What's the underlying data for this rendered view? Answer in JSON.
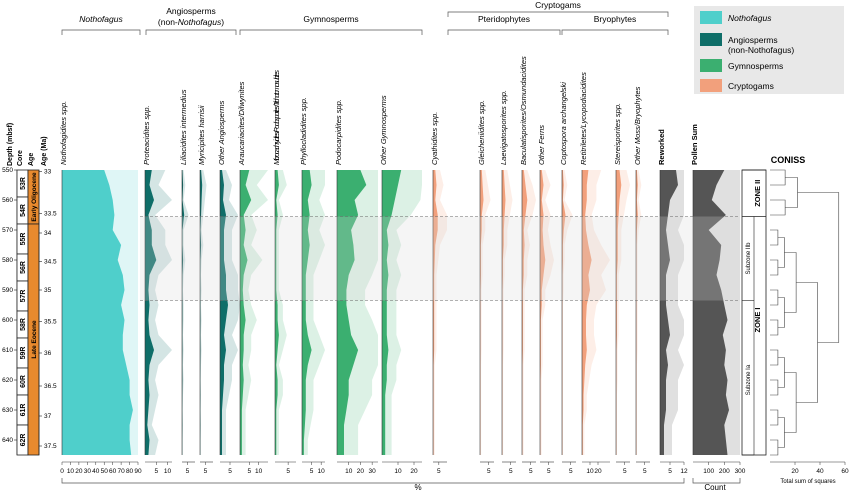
{
  "chart_data": {
    "type": "area",
    "xlabel": "%",
    "count_label": "Count",
    "depth_axis": {
      "label": "Depth (mbsf)",
      "range": [
        550,
        645
      ],
      "ticks": [
        550,
        560,
        570,
        580,
        590,
        600,
        610,
        620,
        630,
        640
      ]
    },
    "core_column": {
      "label": "Core",
      "cores": [
        {
          "name": "53R",
          "top": 550,
          "bottom": 559
        },
        {
          "name": "54R",
          "top": 559,
          "bottom": 568
        },
        {
          "name": "55R",
          "top": 568,
          "bottom": 578
        },
        {
          "name": "56R",
          "top": 578,
          "bottom": 587
        },
        {
          "name": "57R",
          "top": 587,
          "bottom": 597
        },
        {
          "name": "58R",
          "top": 597,
          "bottom": 606
        },
        {
          "name": "59R",
          "top": 606,
          "bottom": 616
        },
        {
          "name": "60R",
          "top": 616,
          "bottom": 625
        },
        {
          "name": "61R",
          "top": 625,
          "bottom": 635
        },
        {
          "name": "62R",
          "top": 635,
          "bottom": 645
        }
      ]
    },
    "age_column": {
      "label": "Age",
      "units": [
        {
          "name": "Early Oligocene",
          "top": 550,
          "bottom": 568
        },
        {
          "name": "Late Eocene",
          "top": 568,
          "bottom": 645
        }
      ]
    },
    "age_ma_axis": {
      "label": "Age (Ma)",
      "ticks": [
        {
          "label": "33",
          "depth": 550.5
        },
        {
          "label": "33.5",
          "depth": 564.5
        },
        {
          "label": "34",
          "depth": 571
        },
        {
          "label": "34.5",
          "depth": 580.5
        },
        {
          "label": "35",
          "depth": 590
        },
        {
          "label": "35.5",
          "depth": 600.5
        },
        {
          "label": "36",
          "depth": 611
        },
        {
          "label": "36.5",
          "depth": 622
        },
        {
          "label": "37",
          "depth": 632
        },
        {
          "label": "37.5",
          "depth": 642
        }
      ]
    },
    "zone_boundaries_depth": [
      565.5,
      593.5
    ],
    "groups": [
      {
        "name": "Nothofagus",
        "italic": true
      },
      {
        "name": "Angiosperms",
        "sub": "(non-",
        "sub_italic": "Nothofagus",
        "sub_end": ")"
      },
      {
        "name": "Gymnosperms"
      },
      {
        "name": "Cryptogams"
      },
      {
        "name": "Pteridophytes"
      },
      {
        "name": "Bryophytes"
      }
    ],
    "depths": [
      550,
      555,
      560,
      565,
      570,
      575,
      580,
      585,
      590,
      595,
      600,
      605,
      610,
      615,
      620,
      625,
      630,
      635,
      640,
      645
    ],
    "taxa": [
      {
        "name": "Nothofagidites spp.",
        "group": "nothofagus",
        "color": "#4FCFCB",
        "scale_max": 90,
        "ticks": [
          "0",
          "10",
          "20",
          "30",
          "40",
          "50",
          "60",
          "70",
          "80",
          "90"
        ],
        "values": [
          50,
          56,
          60,
          62,
          60,
          70,
          66,
          72,
          74,
          70,
          74,
          72,
          72,
          76,
          80,
          80,
          84,
          80,
          80,
          82
        ]
      },
      {
        "name": "Proteacidites spp.",
        "group": "angiosperms",
        "color": "#0F6E69",
        "scale_max": 12,
        "ticks": [
          "5",
          "10"
        ],
        "values": [
          3,
          2,
          4,
          1.5,
          3,
          3,
          5,
          2,
          1.5,
          2,
          1.5,
          2,
          4,
          2,
          1.5,
          2,
          1.5,
          1,
          2,
          1.5
        ]
      },
      {
        "name": "Liliacidites intermedius",
        "group": "angiosperms",
        "color": "#0F6E69",
        "scale_max": 12,
        "ticks": [
          "5"
        ],
        "values": [
          0.5,
          1,
          0.5,
          2,
          0.5,
          0.5,
          1,
          0.5,
          0.3,
          0.5,
          0.5,
          0.3,
          0.5,
          0.3,
          0.5,
          0.3,
          0.2,
          0.3,
          0.2,
          0.2
        ]
      },
      {
        "name": "Myricipites harrisii",
        "group": "angiosperms",
        "color": "#0F6E69",
        "scale_max": 12,
        "ticks": [
          "5"
        ],
        "values": [
          1,
          2,
          1.5,
          1,
          0.5,
          1,
          0.5,
          0.3,
          0.5,
          0.3,
          0.5,
          0.3,
          0.5,
          0.3,
          0.2,
          0.3,
          0.2,
          0.3,
          0.2,
          0.2
        ]
      },
      {
        "name": "Other Angiosperms",
        "group": "angiosperms",
        "color": "#0F6E69",
        "scale_max": 10,
        "ticks": [
          "5"
        ],
        "values": [
          1,
          2,
          1.5,
          3,
          2,
          2,
          2,
          3,
          3,
          4,
          3,
          2,
          3,
          2,
          2,
          1.5,
          1,
          1,
          1,
          1
        ]
      },
      {
        "name": "Araucariacites/Dilwynites",
        "group": "gymnosperms",
        "color": "#3BAF70",
        "scale_max": 15,
        "ticks": [
          "5",
          "10"
        ],
        "values": [
          5,
          3,
          6,
          2,
          3,
          2,
          4,
          2,
          1.5,
          2,
          3,
          2,
          2,
          1.5,
          2,
          1.5,
          1,
          1,
          1,
          1
        ]
      },
      {
        "name": "Microcachryidites/Podosporites/Trichotomosulcites",
        "group": "gymnosperms",
        "color": "#3BAF70",
        "scale_max": 8,
        "ticks": [
          "5"
        ],
        "values": [
          1,
          1.5,
          0.5,
          1,
          0.5,
          0.5,
          0.5,
          0.5,
          0.5,
          1,
          1,
          1.5,
          1,
          0.5,
          1,
          1,
          0.5,
          0.5,
          0.5,
          0.5
        ]
      },
      {
        "name": "Phyllocladidites spp.",
        "group": "gymnosperms",
        "color": "#3BAF70",
        "scale_max": 12,
        "ticks": [
          "5",
          "10"
        ],
        "values": [
          4,
          5,
          3,
          4,
          3,
          4,
          3,
          2,
          2,
          2,
          2,
          3,
          5,
          3,
          2,
          2,
          2,
          1.5,
          1,
          1
        ]
      },
      {
        "name": "Podocarpidites spp.",
        "group": "gymnosperms",
        "color": "#3BAF70",
        "scale_max": 35,
        "ticks": [
          "10",
          "20",
          "30"
        ],
        "values": [
          20,
          25,
          15,
          18,
          12,
          14,
          15,
          10,
          8,
          8,
          10,
          12,
          18,
          14,
          10,
          10,
          8,
          6,
          6,
          6
        ]
      },
      {
        "name": "Other Gymnosperms",
        "group": "gymnosperms",
        "color": "#3BAF70",
        "scale_max": 25,
        "ticks": [
          "10",
          "20"
        ],
        "values": [
          12,
          10,
          8,
          6,
          3,
          4,
          3,
          4,
          3,
          3,
          3,
          3,
          4,
          3,
          3,
          2,
          2,
          2,
          2,
          2
        ]
      },
      {
        "name": "Cyathidites spp.",
        "group": "pteridophytes",
        "color": "#F2A07C",
        "scale_max": 12,
        "ticks": [
          "5"
        ],
        "values": [
          2,
          3,
          2,
          4,
          4,
          2,
          1.5,
          1,
          1,
          1,
          1,
          1,
          1,
          0.5,
          0.5,
          0.5,
          0.5,
          0.5,
          0.5,
          0.5
        ]
      },
      {
        "name": "Gleicheniidites spp.",
        "group": "pteridophytes",
        "color": "#F2A07C",
        "scale_max": 8,
        "ticks": [
          "5"
        ],
        "values": [
          1,
          1.5,
          2,
          1,
          1,
          0.5,
          0.5,
          0.5,
          0.3,
          0.3,
          0.3,
          0.3,
          0.3,
          0.2,
          0.2,
          0.2,
          0.2,
          0.2,
          0.2,
          0.2
        ]
      },
      {
        "name": "Laevigatosporites spp.",
        "group": "pteridophytes",
        "color": "#F2A07C",
        "scale_max": 8,
        "ticks": [
          "5"
        ],
        "values": [
          1,
          1.5,
          2,
          1.5,
          1,
          1,
          0.5,
          0.5,
          0.3,
          0.3,
          0.3,
          0.3,
          0.3,
          0.2,
          0.2,
          0.2,
          0.2,
          0.2,
          0.2,
          0.2
        ]
      },
      {
        "name": "Baculatisporites/Osmundacidites",
        "group": "pteridophytes",
        "color": "#F2A07C",
        "scale_max": 8,
        "ticks": [
          "5"
        ],
        "values": [
          1,
          2,
          3,
          2,
          1,
          1.5,
          1,
          1,
          0.5,
          0.5,
          0.5,
          0.5,
          0.5,
          0.3,
          0.3,
          0.3,
          0.3,
          0.3,
          0.3,
          0.3
        ]
      },
      {
        "name": "Other Ferns",
        "group": "pteridophytes",
        "color": "#F2A07C",
        "scale_max": 8,
        "ticks": [
          "5"
        ],
        "values": [
          1,
          2,
          1,
          2,
          1.5,
          2,
          3,
          2,
          1,
          1,
          0.5,
          0.5,
          0.5,
          0.5,
          0.3,
          0.3,
          0.3,
          0.3,
          0.3,
          0.3
        ]
      },
      {
        "name": "Coptospora archangelski",
        "group": "bryophytes",
        "color": "#F2A07C",
        "scale_max": 8,
        "ticks": [
          "5"
        ],
        "values": [
          0.5,
          1,
          0.5,
          2,
          1,
          0.5,
          0.5,
          0.3,
          0.3,
          0.2,
          0.2,
          0.2,
          0.2,
          0.2,
          0.2,
          0.2,
          0.2,
          0.2,
          0.2,
          0.2
        ]
      },
      {
        "name": "Retitriletes/Lycopodiacidites",
        "group": "bryophytes",
        "color": "#F2A07C",
        "scale_max": 35,
        "ticks": [
          "10",
          "20"
        ],
        "values": [
          8,
          6,
          6,
          4,
          5,
          8,
          12,
          8,
          10,
          6,
          5,
          5,
          6,
          4,
          3,
          2,
          2,
          1,
          1,
          1
        ]
      },
      {
        "name": "Stereisporites spp.",
        "group": "bryophytes",
        "color": "#F2A07C",
        "scale_max": 8,
        "ticks": [
          "5"
        ],
        "values": [
          2,
          3,
          2,
          1.5,
          1,
          1,
          1,
          0.5,
          0.5,
          0.5,
          0.5,
          0.5,
          0.3,
          0.3,
          0.3,
          0.2,
          0.2,
          0.2,
          0.2,
          0.2
        ]
      },
      {
        "name": "Other Moss/Bryophytes",
        "group": "bryophytes",
        "color": "#F2A07C",
        "scale_max": 8,
        "ticks": [
          "5"
        ],
        "values": [
          0.5,
          1,
          0.5,
          1,
          0.5,
          0.3,
          0.3,
          0.3,
          0.3,
          0.3,
          0.3,
          0.3,
          0.3,
          0.2,
          0.2,
          0.2,
          0.2,
          0.2,
          0.2,
          0.2
        ]
      },
      {
        "name": "Reworked",
        "group": "reworked",
        "color": "#555555",
        "bold": true,
        "scale_max": 12,
        "ticks": [
          "5",
          "12"
        ],
        "values": [
          8,
          9,
          5,
          4,
          3,
          4,
          5,
          3,
          3,
          3,
          4,
          5,
          3,
          4,
          3,
          3,
          3,
          2,
          2,
          2
        ]
      },
      {
        "name": "Pollen Sum",
        "group": "count",
        "color": "#555555",
        "bold": true,
        "scale_max": 300,
        "ticks": [
          "100",
          "200",
          "300"
        ],
        "values": [
          200,
          150,
          120,
          210,
          100,
          180,
          170,
          150,
          180,
          200,
          220,
          190,
          210,
          200,
          220,
          210,
          230,
          200,
          210,
          220
        ]
      }
    ],
    "legend": [
      {
        "label": "Nothofagus",
        "italic": true,
        "color": "#4FCFCB"
      },
      {
        "label": "Angiosperms",
        "label2": "(non-Nothofagus)",
        "color": "#0F6E69"
      },
      {
        "label": "Gymnosperms",
        "color": "#3BAF70"
      },
      {
        "label": "Cryptogams",
        "color": "#F2A07C"
      }
    ],
    "coniss": {
      "title": "CONISS",
      "zones": [
        {
          "label": "ZONE II",
          "top": 550,
          "bottom": 565.5
        },
        {
          "label": "ZONE I",
          "top": 565.5,
          "bottom": 645
        }
      ],
      "subzones": [
        {
          "label": "Subzone IIb",
          "top": 565.5,
          "bottom": 593.5
        },
        {
          "label": "Subzone Ia",
          "top": 593.5,
          "bottom": 645
        }
      ],
      "xlabel": "Total sum of squares",
      "xticks": [
        20,
        40,
        60
      ],
      "xlim": [
        0,
        60
      ]
    }
  }
}
